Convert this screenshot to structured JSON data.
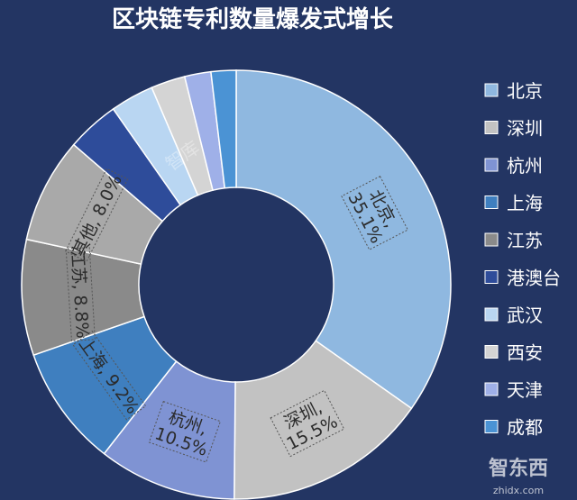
{
  "chart_data": {
    "type": "pie",
    "title": "区块链专利数量爆发式增长",
    "legend_position": "right",
    "slices": [
      {
        "name": "北京",
        "value": 35.1,
        "color": "#8fb8e0",
        "label": "北京, 35.1%"
      },
      {
        "name": "深圳",
        "value": 15.5,
        "color": "#c2c2c2",
        "label": "深圳, 15.5%"
      },
      {
        "name": "杭州",
        "value": 10.5,
        "color": "#7f93d3",
        "label": "杭州, 10.5%"
      },
      {
        "name": "上海",
        "value": 9.2,
        "color": "#3f7fbf",
        "label": "上海, 9.2%"
      },
      {
        "name": "江苏",
        "value": 8.8,
        "color": "#8a8a8a",
        "label": "江苏, 8.8%"
      },
      {
        "name": "其他",
        "value": 8.0,
        "color": "#a9a9a9",
        "label": "其他, 8.0%"
      },
      {
        "name": "港澳台",
        "value": 4.0,
        "color": "#2e4c9a",
        "label": ""
      },
      {
        "name": "武汉",
        "value": 3.3,
        "color": "#b9d6f2",
        "label": ""
      },
      {
        "name": "西安",
        "value": 2.6,
        "color": "#d4d4d4",
        "label": ""
      },
      {
        "name": "天津",
        "value": 2.0,
        "color": "#9fb0e8",
        "label": ""
      },
      {
        "name": "成都",
        "value": 1.9,
        "color": "#4b93d4",
        "label": ""
      }
    ],
    "legend": [
      "北京",
      "深圳",
      "杭州",
      "上海",
      "江苏",
      "港澳台",
      "武汉",
      "西安",
      "天津",
      "成都"
    ]
  },
  "watermark": {
    "top_left_brand": "智库",
    "bottom_right_brand": "智东西",
    "bottom_right_url": "zhidx.com"
  }
}
